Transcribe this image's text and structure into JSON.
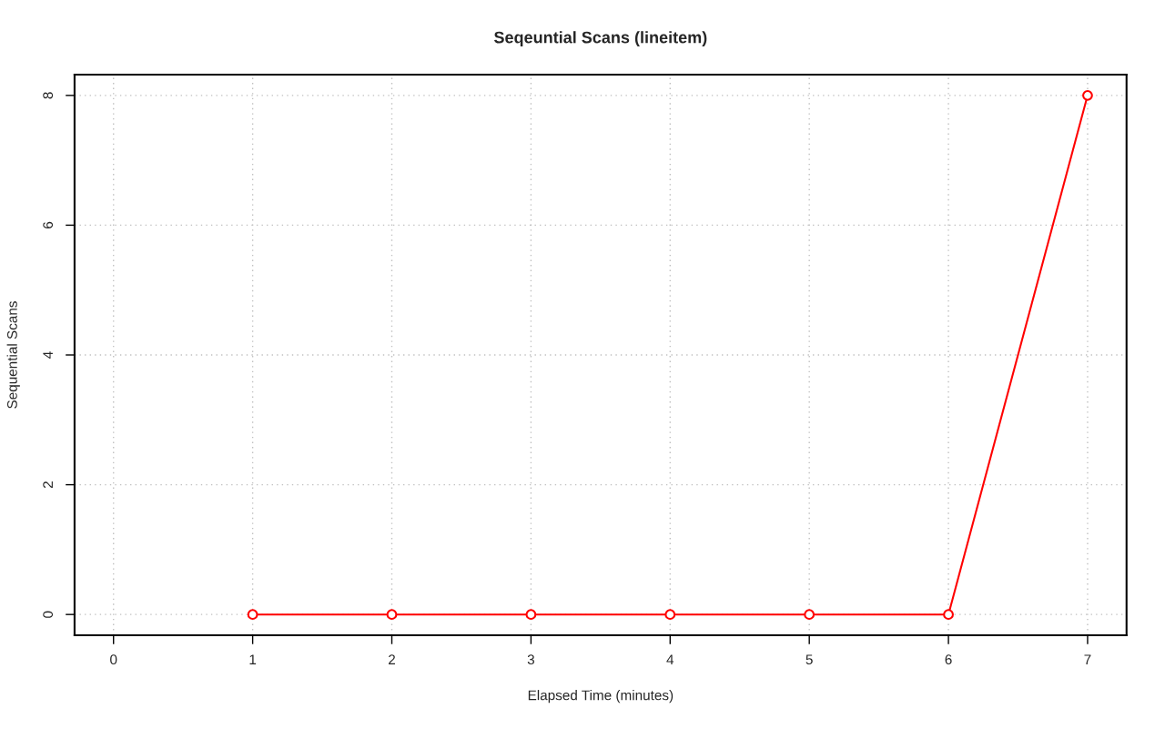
{
  "chart_data": {
    "type": "line",
    "title": "Seqeuntial Scans (lineitem)",
    "xlabel": "Elapsed Time (minutes)",
    "ylabel": "Sequential Scans",
    "x": [
      1,
      2,
      3,
      4,
      5,
      6,
      7
    ],
    "series": [
      {
        "color": "#ff0000",
        "values": [
          0,
          0,
          0,
          0,
          0,
          0,
          8
        ]
      }
    ],
    "xlim": [
      -0.28,
      7.28
    ],
    "xticks": [
      0,
      1,
      2,
      3,
      4,
      5,
      6,
      7
    ],
    "ylim": [
      -0.32,
      8.32
    ],
    "yticks": [
      0,
      2,
      4,
      6,
      8
    ],
    "grid": true,
    "marker": "circle",
    "line_style": "solid"
  }
}
